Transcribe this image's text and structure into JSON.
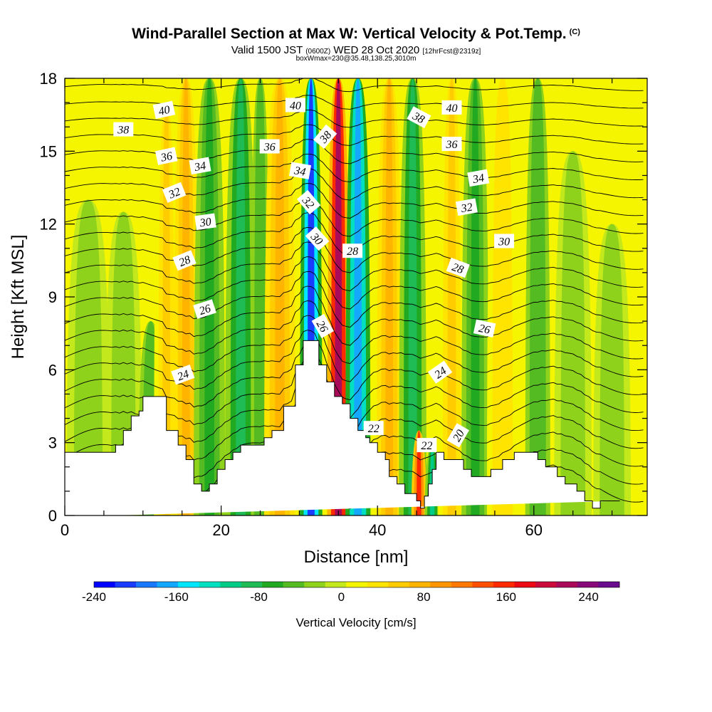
{
  "header": {
    "title": "Wind-Parallel Section at Max W: Vertical Velocity & Pot.Temp.",
    "copyright": "(C)",
    "valid_prefix": "Valid 1500 JST",
    "valid_z": "(0600Z)",
    "valid_date": "WED 28 Oct 2020",
    "forecast": "[12hrFcst@2319z]",
    "box_info": "boxWmax=230@35.48,138.25,3010m"
  },
  "chart_data": {
    "type": "heatmap",
    "xlabel": "Distance [nm]",
    "ylabel": "Height [Kft MSL]",
    "xlim": [
      0,
      74.5
    ],
    "ylim": [
      0,
      18
    ],
    "x_ticks": [
      0,
      20,
      40,
      60
    ],
    "y_ticks": [
      0,
      3,
      6,
      9,
      12,
      15,
      18
    ],
    "colorbar": {
      "label": "Vertical Velocity [cm/s]",
      "min": -240,
      "max": 270,
      "step": 20,
      "ticks": [
        -240,
        -160,
        -80,
        0,
        80,
        160,
        240
      ],
      "colors": [
        "#0000ff",
        "#1a3cff",
        "#1a78ff",
        "#15a8ff",
        "#00e6ff",
        "#00e0c0",
        "#00cc88",
        "#1fbb55",
        "#21aa21",
        "#55bb22",
        "#8fd21b",
        "#c3e81b",
        "#f5f500",
        "#ffe400",
        "#ffcc00",
        "#ffb400",
        "#ff9600",
        "#ff7800",
        "#ff5000",
        "#ff2a00",
        "#ee0a14",
        "#cc0a3c",
        "#aa0a5a",
        "#880a78",
        "#6a0a8c"
      ]
    },
    "vertical_velocity_bands": [
      {
        "x": 3,
        "w": 3.5,
        "value": -40,
        "top": 13
      },
      {
        "x": 7.5,
        "w": 3,
        "value": -35,
        "top": 12.5
      },
      {
        "x": 11,
        "w": 2,
        "value": -60,
        "top": 8
      },
      {
        "x": 13,
        "w": 2,
        "value": 45,
        "top": 17
      },
      {
        "x": 15.5,
        "w": 2,
        "value": 70,
        "top": 18
      },
      {
        "x": 18.5,
        "w": 2.5,
        "value": -70,
        "top": 18
      },
      {
        "x": 22.5,
        "w": 2.5,
        "value": -90,
        "top": 18
      },
      {
        "x": 25,
        "w": 1.5,
        "value": -60,
        "top": 18
      },
      {
        "x": 27.5,
        "w": 2.5,
        "value": 60,
        "top": 18
      },
      {
        "x": 31.5,
        "w": 1.8,
        "value": -215,
        "top": 18
      },
      {
        "x": 35,
        "w": 1.8,
        "value": 210,
        "top": 18
      },
      {
        "x": 37.5,
        "w": 2,
        "value": -175,
        "top": 18
      },
      {
        "x": 41.5,
        "w": 2,
        "value": 60,
        "top": 18
      },
      {
        "x": 44.5,
        "w": 2.2,
        "value": -95,
        "top": 18
      },
      {
        "x": 45.3,
        "w": 1.2,
        "value": 140,
        "top": 3.5
      },
      {
        "x": 47,
        "w": 1.2,
        "value": -110,
        "top": 3
      },
      {
        "x": 49.5,
        "w": 2.2,
        "value": 55,
        "top": 18
      },
      {
        "x": 52.5,
        "w": 2.2,
        "value": -70,
        "top": 18
      },
      {
        "x": 56,
        "w": 2.5,
        "value": 35,
        "top": 18
      },
      {
        "x": 60.5,
        "w": 2,
        "value": -60,
        "top": 18
      },
      {
        "x": 65,
        "w": 3,
        "value": -35,
        "top": 15
      },
      {
        "x": 70,
        "w": 3,
        "value": -30,
        "top": 12
      }
    ],
    "terrain": {
      "x": [
        0,
        6.5,
        6.5,
        7.5,
        7.5,
        8.5,
        8.5,
        9.5,
        9.5,
        10,
        10,
        13,
        13,
        14.5,
        14.5,
        15.5,
        15.5,
        16.5,
        16.5,
        17.5,
        17.5,
        18.5,
        18.5,
        19.5,
        19.5,
        20.5,
        20.5,
        21.5,
        21.5,
        22.5,
        22.5,
        25.5,
        25.5,
        26.5,
        26.5,
        28,
        28,
        29.5,
        29.5,
        30.5,
        30.5,
        32.5,
        32.5,
        33.5,
        33.5,
        34.5,
        34.5,
        35.5,
        35.5,
        36.5,
        36.5,
        37.5,
        37.5,
        38.5,
        38.5,
        39,
        39,
        40,
        40,
        41,
        41,
        41.5,
        41.5,
        42.5,
        42.5,
        43.5,
        43.5,
        45,
        45,
        45.5,
        45.5,
        46,
        46,
        46.5,
        46.5,
        47,
        47,
        47.5,
        47.5,
        48.5,
        48.5,
        51,
        51,
        52,
        52,
        54.5,
        54.5,
        56,
        56,
        57.5,
        57.5,
        60.5,
        60.5,
        61.5,
        61.5,
        63,
        63,
        64,
        64,
        65.5,
        65.5,
        66.5,
        66.5,
        67.5,
        67.5,
        68.5,
        68.5,
        71,
        71,
        74.5
      ],
      "y": [
        2.6,
        2.6,
        2.9,
        2.9,
        3.5,
        3.5,
        4.1,
        4.1,
        4.3,
        4.3,
        4.9,
        4.9,
        3.5,
        3.5,
        2.9,
        2.9,
        2.3,
        2.3,
        1.3,
        1.3,
        1,
        1,
        1.3,
        1.3,
        1.9,
        1.9,
        2.3,
        2.3,
        2.6,
        2.6,
        2.9,
        2.9,
        3.2,
        3.2,
        3.5,
        3.5,
        4.5,
        4.5,
        6.2,
        6.2,
        7.2,
        7.2,
        6.2,
        6.2,
        5.5,
        5.5,
        4.9,
        4.9,
        4.6,
        4.6,
        4,
        4,
        3.5,
        3.5,
        3.2,
        3.2,
        3,
        3,
        2.6,
        2.6,
        2.3,
        2.3,
        1.6,
        1.6,
        1.3,
        1.3,
        0.9,
        0.9,
        0.6,
        0.6,
        0.3,
        0.3,
        0.8,
        0.8,
        1.3,
        1.3,
        1.9,
        1.9,
        2.6,
        2.6,
        2.3,
        2.3,
        1.9,
        1.9,
        1.6,
        1.6,
        1.9,
        1.9,
        2.3,
        2.3,
        2.6,
        2.6,
        2.3,
        2.3,
        2,
        2,
        1.6,
        1.6,
        1.3,
        1.3,
        1,
        1,
        0.6,
        0.6,
        0.3,
        0.3,
        0.6,
        0.6,
        0.6
      ]
    },
    "contour_labels": [
      {
        "text": "40",
        "x": 12.7,
        "y": 16.7,
        "angle": -12
      },
      {
        "text": "38",
        "x": 7.5,
        "y": 15.9,
        "angle": 0
      },
      {
        "text": "36",
        "x": 13,
        "y": 14.8,
        "angle": -12
      },
      {
        "text": "34",
        "x": 17.3,
        "y": 14.4,
        "angle": -10
      },
      {
        "text": "32",
        "x": 14,
        "y": 13.3,
        "angle": -22
      },
      {
        "text": "30",
        "x": 18,
        "y": 12.1,
        "angle": -8
      },
      {
        "text": "28",
        "x": 15.3,
        "y": 10.5,
        "angle": -22
      },
      {
        "text": "26",
        "x": 17.9,
        "y": 8.5,
        "angle": -18
      },
      {
        "text": "24",
        "x": 15.1,
        "y": 5.8,
        "angle": -20
      },
      {
        "text": "40",
        "x": 29.5,
        "y": 16.9,
        "angle": 0
      },
      {
        "text": "36",
        "x": 26.2,
        "y": 15.2,
        "angle": 0
      },
      {
        "text": "38",
        "x": 33.3,
        "y": 15.6,
        "angle": -50
      },
      {
        "text": "34",
        "x": 30.1,
        "y": 14.2,
        "angle": 10
      },
      {
        "text": "32",
        "x": 31.2,
        "y": 12.9,
        "angle": 50
      },
      {
        "text": "30",
        "x": 32.3,
        "y": 11.4,
        "angle": 48
      },
      {
        "text": "28",
        "x": 36.8,
        "y": 10.9,
        "angle": 0
      },
      {
        "text": "26",
        "x": 33,
        "y": 7.8,
        "angle": 60
      },
      {
        "text": "22",
        "x": 39.5,
        "y": 3.6,
        "angle": 0
      },
      {
        "text": "22",
        "x": 46.3,
        "y": 2.9,
        "angle": 0
      },
      {
        "text": "38",
        "x": 45.3,
        "y": 16.4,
        "angle": 28
      },
      {
        "text": "40",
        "x": 49.5,
        "y": 16.8,
        "angle": 0
      },
      {
        "text": "36",
        "x": 49.5,
        "y": 15.3,
        "angle": 0
      },
      {
        "text": "34",
        "x": 52.9,
        "y": 13.9,
        "angle": -10
      },
      {
        "text": "32",
        "x": 51.4,
        "y": 12.7,
        "angle": -10
      },
      {
        "text": "30",
        "x": 56.2,
        "y": 11.3,
        "angle": 0
      },
      {
        "text": "28",
        "x": 50.3,
        "y": 10.2,
        "angle": 20
      },
      {
        "text": "26",
        "x": 53.7,
        "y": 7.7,
        "angle": 12
      },
      {
        "text": "24",
        "x": 48,
        "y": 5.9,
        "angle": -35
      },
      {
        "text": "20",
        "x": 50.3,
        "y": 3.3,
        "angle": -60
      }
    ]
  }
}
